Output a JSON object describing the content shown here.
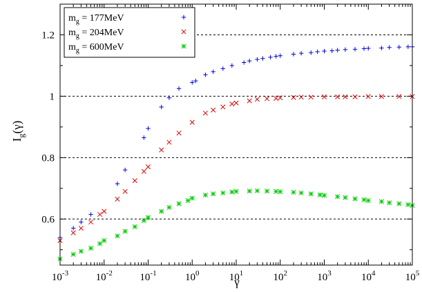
{
  "chart_data": {
    "type": "scatter",
    "xlabel": "γ",
    "ylabel": {
      "base": "I",
      "sub": "g",
      "rest": "(γ)"
    },
    "x_scale": "log",
    "xlim": [
      0.001,
      100000
    ],
    "ylim": [
      0.45,
      1.3
    ],
    "grid": "dashed horizontal lines at 0.6, 0.8, 1, 1.2",
    "legend_position": "top-left",
    "x_ticks": [
      {
        "value": 0.001,
        "base": "10",
        "exp": "-3"
      },
      {
        "value": 0.01,
        "base": "10",
        "exp": "-2"
      },
      {
        "value": 0.1,
        "base": "10",
        "exp": "-1"
      },
      {
        "value": 1,
        "base": "10",
        "exp": "0"
      },
      {
        "value": 10,
        "base": "10",
        "exp": "1"
      },
      {
        "value": 100,
        "base": "10",
        "exp": "2"
      },
      {
        "value": 1000,
        "base": "10",
        "exp": "3"
      },
      {
        "value": 10000,
        "base": "10",
        "exp": "4"
      },
      {
        "value": 100000,
        "base": "10",
        "exp": "5"
      }
    ],
    "y_ticks": [
      {
        "value": 0.6,
        "label": "0.6"
      },
      {
        "value": 0.8,
        "label": "0.8"
      },
      {
        "value": 1.0,
        "label": "1"
      },
      {
        "value": 1.2,
        "label": "1.2"
      }
    ],
    "series": [
      {
        "name": "m_g = 177MeV",
        "legend": {
          "base": "m",
          "sub": "g",
          "rest": " = 177MeV"
        },
        "marker": "plus",
        "color": "#0000dd",
        "x": [
          0.001,
          0.002,
          0.003,
          0.005,
          0.02,
          0.03,
          0.08,
          0.1,
          0.2,
          0.3,
          0.5,
          1,
          1.2,
          2,
          3,
          5,
          8,
          15,
          20,
          30,
          40,
          60,
          80,
          100,
          200,
          300,
          500,
          700,
          1000,
          1500,
          2000,
          3000,
          5000,
          8000,
          10000,
          20000,
          30000,
          50000,
          80000,
          100000
        ],
        "y": [
          0.54,
          0.57,
          0.59,
          0.615,
          0.715,
          0.76,
          0.865,
          0.895,
          0.965,
          0.995,
          1.025,
          1.045,
          1.05,
          1.07,
          1.08,
          1.09,
          1.1,
          1.11,
          1.115,
          1.12,
          1.123,
          1.127,
          1.13,
          1.132,
          1.137,
          1.14,
          1.142,
          1.145,
          1.147,
          1.148,
          1.15,
          1.152,
          1.153,
          1.155,
          1.156,
          1.157,
          1.159,
          1.16,
          1.161,
          1.161
        ]
      },
      {
        "name": "m_g = 204MeV",
        "legend": {
          "base": "m",
          "sub": "g",
          "rest": " = 204MeV"
        },
        "marker": "cross",
        "color": "#dd0000",
        "x": [
          0.001,
          0.002,
          0.003,
          0.005,
          0.008,
          0.01,
          0.02,
          0.03,
          0.05,
          0.08,
          0.1,
          0.2,
          0.3,
          0.5,
          1,
          2,
          3,
          5,
          8,
          10,
          20,
          30,
          50,
          80,
          100,
          200,
          300,
          500,
          1000,
          2000,
          3000,
          5000,
          10000,
          20000,
          50000,
          100000
        ],
        "y": [
          0.53,
          0.555,
          0.57,
          0.59,
          0.615,
          0.625,
          0.665,
          0.69,
          0.725,
          0.755,
          0.77,
          0.825,
          0.85,
          0.88,
          0.915,
          0.945,
          0.955,
          0.965,
          0.975,
          0.978,
          0.985,
          0.99,
          0.992,
          0.993,
          0.995,
          0.996,
          0.997,
          0.997,
          0.998,
          0.998,
          0.998,
          0.998,
          0.999,
          0.999,
          0.999,
          0.999
        ]
      },
      {
        "name": "m_g = 600MeV",
        "legend": {
          "base": "m",
          "sub": "g",
          "rest": " = 600MeV"
        },
        "marker": "star",
        "color": "#00cc00",
        "x": [
          0.001,
          0.002,
          0.003,
          0.005,
          0.008,
          0.01,
          0.02,
          0.03,
          0.05,
          0.08,
          0.1,
          0.2,
          0.3,
          0.5,
          0.8,
          1,
          2,
          3,
          5,
          8,
          10,
          20,
          30,
          50,
          80,
          100,
          200,
          300,
          500,
          800,
          1000,
          2000,
          3000,
          5000,
          8000,
          10000,
          20000,
          30000,
          50000,
          80000,
          100000
        ],
        "y": [
          0.47,
          0.485,
          0.495,
          0.505,
          0.52,
          0.53,
          0.545,
          0.56,
          0.575,
          0.595,
          0.605,
          0.625,
          0.638,
          0.65,
          0.66,
          0.668,
          0.678,
          0.682,
          0.685,
          0.688,
          0.69,
          0.691,
          0.692,
          0.691,
          0.69,
          0.689,
          0.687,
          0.685,
          0.682,
          0.679,
          0.677,
          0.673,
          0.67,
          0.666,
          0.663,
          0.66,
          0.657,
          0.653,
          0.65,
          0.647,
          0.644
        ]
      }
    ]
  }
}
